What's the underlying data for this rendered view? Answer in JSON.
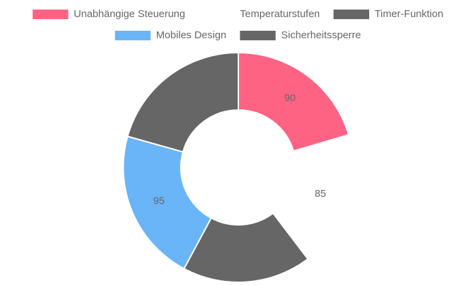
{
  "chart_data": {
    "type": "doughnut",
    "categories": [
      "Unabhängige Steuerung",
      "Temperaturstufen",
      "Timer-Funktion",
      "Mobiles Design",
      "Sicherheitssperre"
    ],
    "values": [
      90,
      85,
      80,
      95,
      91
    ],
    "value_labels": [
      "90",
      "85",
      null,
      "95",
      null
    ],
    "colors": [
      "#ff6384",
      "#ffffff",
      "#666666",
      "#6ab4f8",
      "#666666"
    ]
  }
}
